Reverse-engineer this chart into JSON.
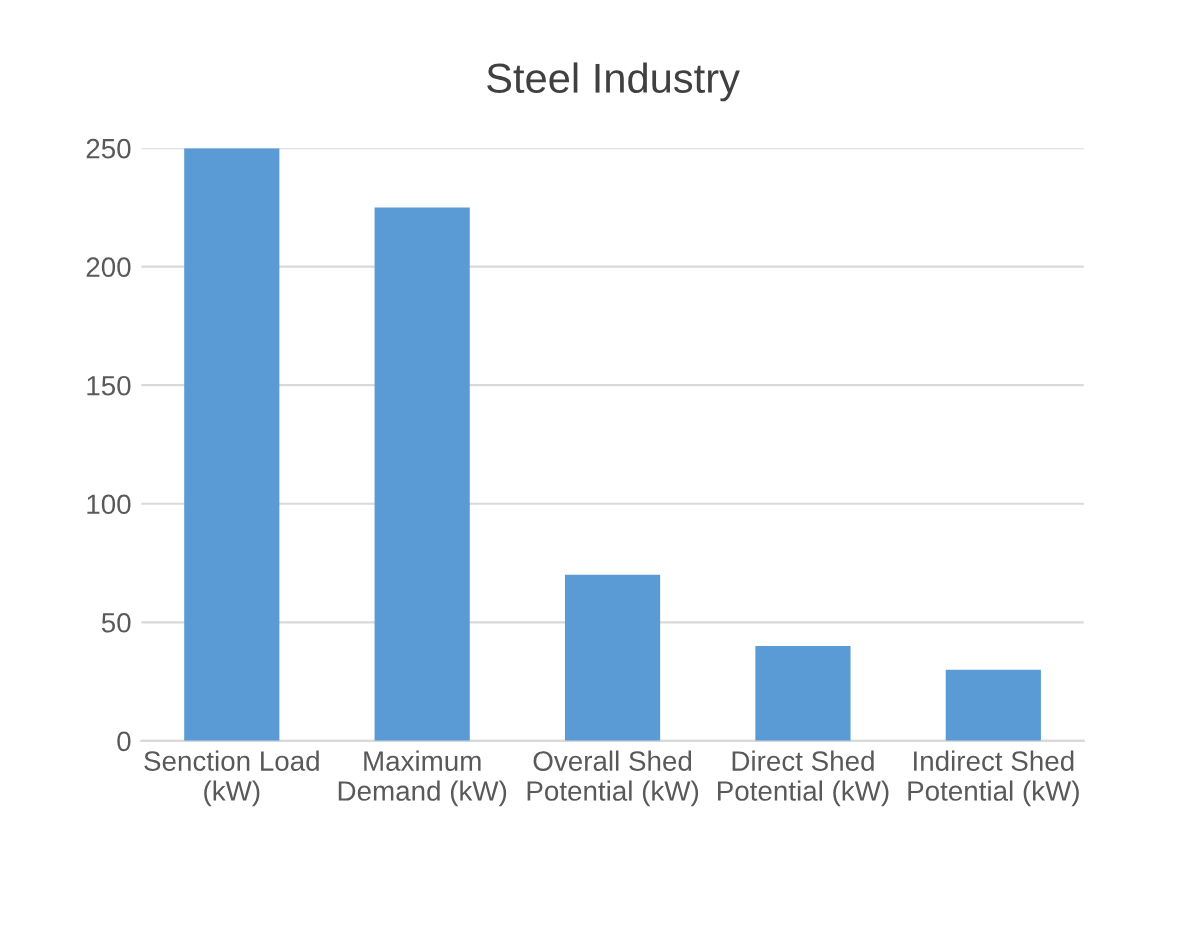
{
  "chart_data": {
    "type": "bar",
    "title": "Steel Industry",
    "categories": [
      "Senction Load\n(kW)",
      "Maximum\nDemand (kW)",
      "Overall Shed\nPotential (kW)",
      "Direct Shed\nPotential (kW)",
      "Indirect Shed\nPotential (kW)"
    ],
    "values": [
      250,
      225,
      70,
      40,
      30
    ],
    "color": "#5b9bd5",
    "ylim": [
      0,
      250
    ],
    "yticks": [
      0,
      50,
      100,
      150,
      200,
      250
    ],
    "grid": "y"
  }
}
